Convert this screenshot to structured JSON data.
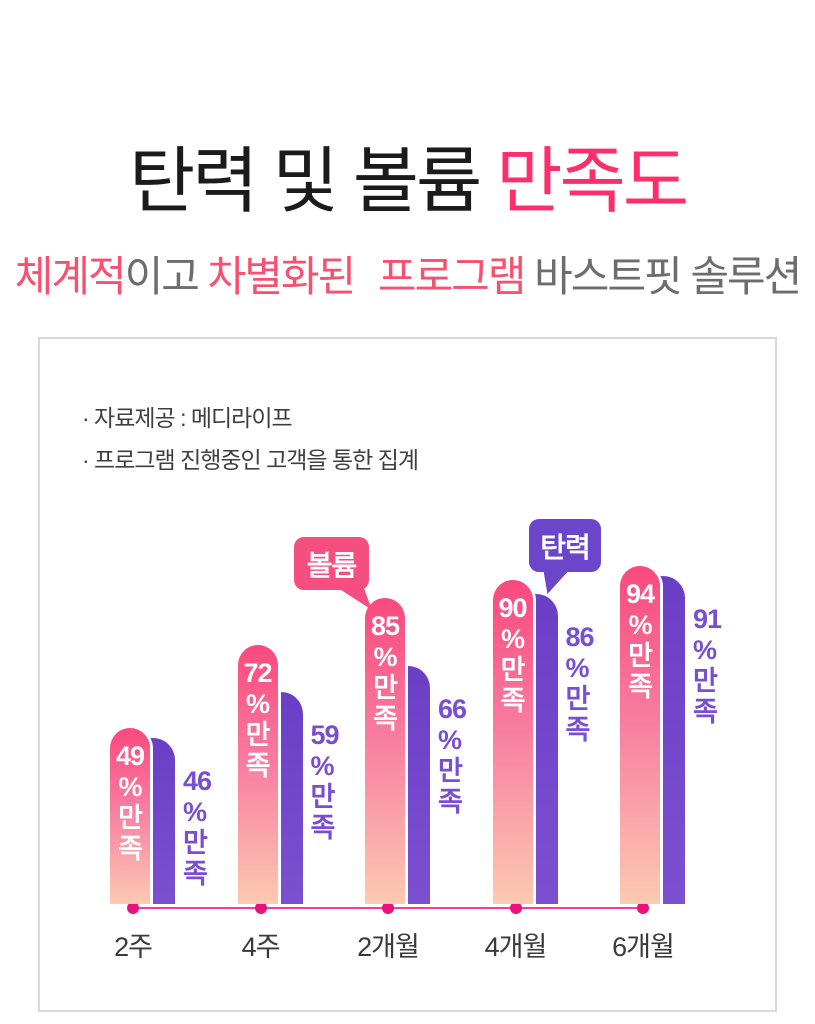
{
  "title": {
    "black_part": "탄력 및 볼륨",
    "pink_part": "만족도"
  },
  "subtitle": {
    "p1": "체계적",
    "p2": "이고",
    "p3": "차별화된",
    "p4": "프로그램",
    "p5": "바스트핏 솔루션"
  },
  "panel": {
    "notes": [
      "· 자료제공 : 메디라이프",
      "· 프로그램 진행중인 고객을 통한 집계"
    ]
  },
  "bubbles": {
    "volume_label": "볼륨",
    "elasticity_label": "탄력"
  },
  "chart_data": {
    "type": "bar",
    "title": "탄력 및 볼륨 만족도",
    "categories": [
      "2주",
      "4주",
      "2개월",
      "4개월",
      "6개월"
    ],
    "series": [
      {
        "name": "볼륨",
        "color": "#f9497e",
        "values": [
          49,
          72,
          85,
          90,
          94
        ]
      },
      {
        "name": "탄력",
        "color": "#7048cb",
        "values": [
          46,
          59,
          66,
          86,
          91
        ]
      }
    ],
    "value_unit": "%",
    "value_suffix": "만족",
    "ylim": [
      0,
      100
    ],
    "grid": false,
    "legend_position": "speech-bubbles-above-bars"
  },
  "colors": {
    "title_pink": "#fc2e6c",
    "subtitle_pink": "#f8506f",
    "bar_pink_top": "#f9497e",
    "bar_pink_bottom": "#fccab1",
    "bar_purple": "#7048cb",
    "purple_value_text": "#7a4ed2",
    "axis_line": "#f4418a",
    "axis_dot": "#e9117c",
    "panel_border": "#d9d9d9"
  }
}
